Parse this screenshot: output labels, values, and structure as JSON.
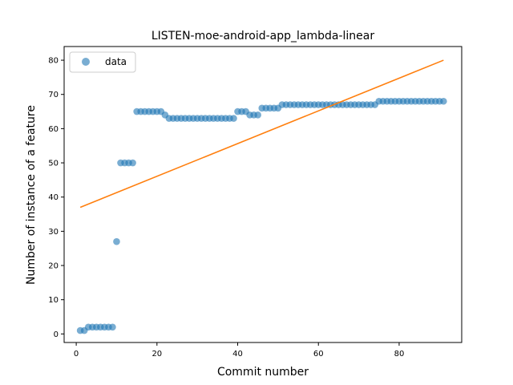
{
  "chart_data": {
    "type": "scatter",
    "title": "LISTEN-moe-android-app_lambda-linear",
    "xlabel": "Commit number",
    "ylabel": "Number of instance of a feature",
    "xlim": [
      -3,
      95.5
    ],
    "ylim": [
      -2.5,
      84
    ],
    "xticks": [
      0,
      20,
      40,
      60,
      80
    ],
    "yticks": [
      0,
      10,
      20,
      30,
      40,
      50,
      60,
      70,
      80
    ],
    "legend": {
      "placement": "top-left",
      "entries": [
        "data"
      ]
    },
    "series": [
      {
        "name": "data",
        "kind": "scatter",
        "color": "#1f77b4",
        "x": [
          1,
          2,
          3,
          4,
          5,
          6,
          7,
          8,
          9,
          10,
          11,
          12,
          13,
          14,
          15,
          16,
          17,
          18,
          19,
          20,
          21,
          22,
          23,
          24,
          25,
          26,
          27,
          28,
          29,
          30,
          31,
          32,
          33,
          34,
          35,
          36,
          37,
          38,
          39,
          40,
          41,
          42,
          43,
          44,
          45,
          46,
          47,
          48,
          49,
          50,
          51,
          52,
          53,
          54,
          55,
          56,
          57,
          58,
          59,
          60,
          61,
          62,
          63,
          64,
          65,
          66,
          67,
          68,
          69,
          70,
          71,
          72,
          73,
          74,
          75,
          76,
          77,
          78,
          79,
          80,
          81,
          82,
          83,
          84,
          85,
          86,
          87,
          88,
          89,
          90,
          91
        ],
        "y": [
          1,
          1,
          2,
          2,
          2,
          2,
          2,
          2,
          2,
          27,
          50,
          50,
          50,
          50,
          65,
          65,
          65,
          65,
          65,
          65,
          65,
          64,
          63,
          63,
          63,
          63,
          63,
          63,
          63,
          63,
          63,
          63,
          63,
          63,
          63,
          63,
          63,
          63,
          63,
          65,
          65,
          65,
          64,
          64,
          64,
          66,
          66,
          66,
          66,
          66,
          67,
          67,
          67,
          67,
          67,
          67,
          67,
          67,
          67,
          67,
          67,
          67,
          67,
          67,
          67,
          67,
          67,
          67,
          67,
          67,
          67,
          67,
          67,
          67,
          68,
          68,
          68,
          68,
          68,
          68,
          68,
          68,
          68,
          68,
          68,
          68,
          68,
          68,
          68,
          68,
          68
        ]
      },
      {
        "name": "",
        "kind": "line",
        "color": "#ff7f0e",
        "x": [
          1,
          91
        ],
        "y": [
          37,
          80
        ]
      }
    ]
  }
}
